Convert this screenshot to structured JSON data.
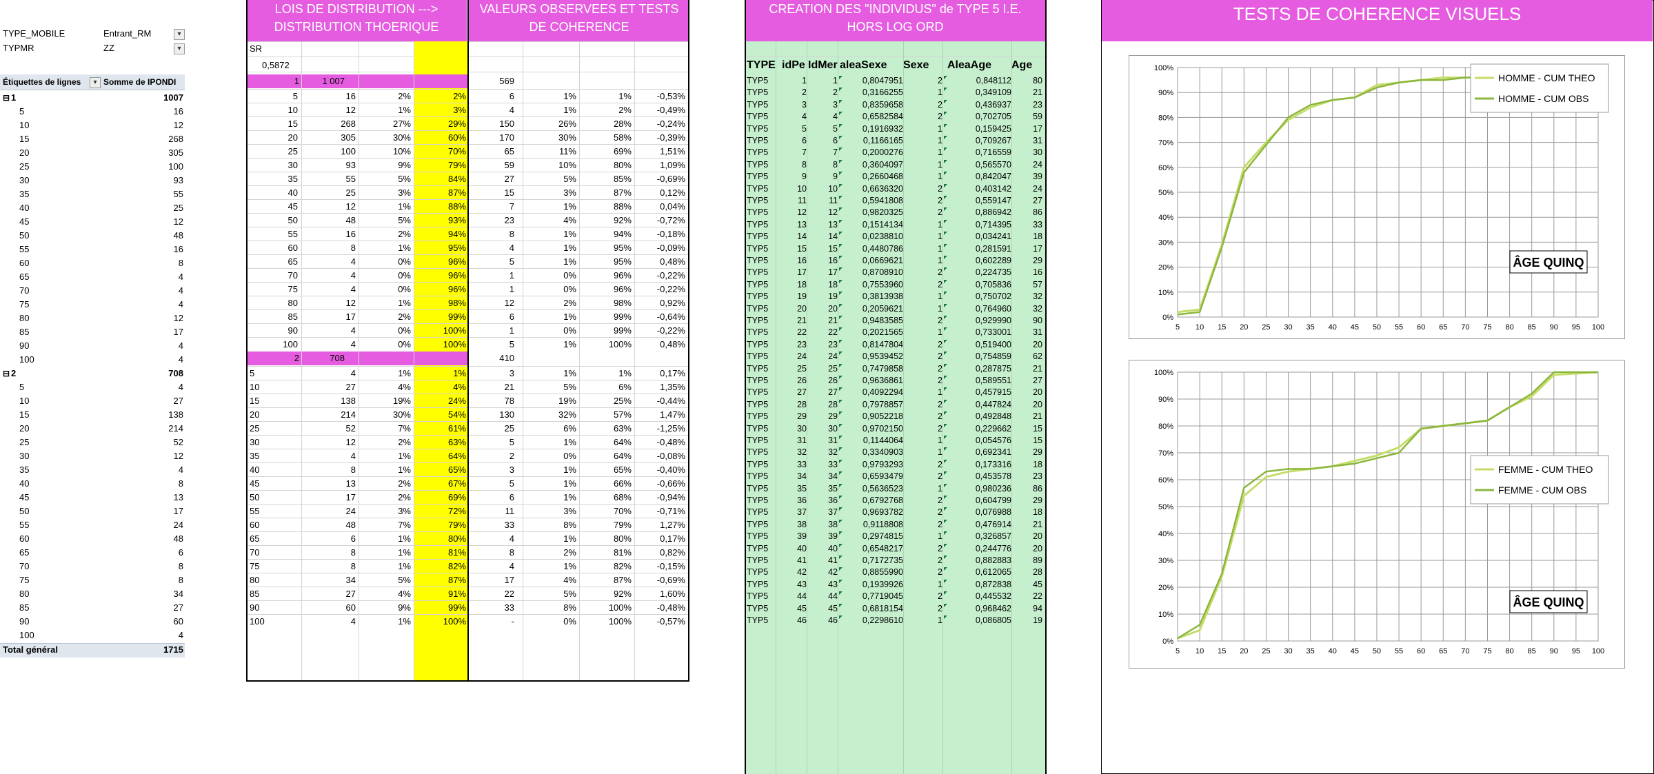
{
  "pivot": {
    "filters": [
      {
        "label": "TYPE_MOBILE",
        "value": "Entrant_RM"
      },
      {
        "label": "TYPMR",
        "value": "ZZ"
      }
    ],
    "header": {
      "labels": "Étiquettes de lignes",
      "sum": "Somme de IPONDI"
    },
    "groups": [
      {
        "label": "1",
        "total": "1007",
        "rows": [
          [
            "5",
            "16"
          ],
          [
            "10",
            "12"
          ],
          [
            "15",
            "268"
          ],
          [
            "20",
            "305"
          ],
          [
            "25",
            "100"
          ],
          [
            "30",
            "93"
          ],
          [
            "35",
            "55"
          ],
          [
            "40",
            "25"
          ],
          [
            "45",
            "12"
          ],
          [
            "50",
            "48"
          ],
          [
            "55",
            "16"
          ],
          [
            "60",
            "8"
          ],
          [
            "65",
            "4"
          ],
          [
            "70",
            "4"
          ],
          [
            "75",
            "4"
          ],
          [
            "80",
            "12"
          ],
          [
            "85",
            "17"
          ],
          [
            "90",
            "4"
          ],
          [
            "100",
            "4"
          ]
        ]
      },
      {
        "label": "2",
        "total": "708",
        "rows": [
          [
            "5",
            "4"
          ],
          [
            "10",
            "27"
          ],
          [
            "15",
            "138"
          ],
          [
            "20",
            "214"
          ],
          [
            "25",
            "52"
          ],
          [
            "30",
            "12"
          ],
          [
            "35",
            "4"
          ],
          [
            "40",
            "8"
          ],
          [
            "45",
            "13"
          ],
          [
            "50",
            "17"
          ],
          [
            "55",
            "24"
          ],
          [
            "60",
            "48"
          ],
          [
            "65",
            "6"
          ],
          [
            "70",
            "8"
          ],
          [
            "75",
            "8"
          ],
          [
            "80",
            "34"
          ],
          [
            "85",
            "27"
          ],
          [
            "90",
            "60"
          ],
          [
            "100",
            "4"
          ]
        ]
      }
    ],
    "grand_total": {
      "label": "Total général",
      "value": "1715"
    }
  },
  "lois": {
    "title": "LOIS DE DISTRIBUTION ---> DISTRIBUTION THOERIQUE",
    "sr_label": "SR",
    "sr_value": "0,5872",
    "g1": {
      "key": "1",
      "total": "1 007",
      "obs_total": "569"
    },
    "g2": {
      "key": "2",
      "total": "708",
      "obs_total": "410"
    },
    "rows1": [
      [
        "5",
        "16",
        "2%",
        "2%"
      ],
      [
        "10",
        "12",
        "1%",
        "3%"
      ],
      [
        "15",
        "268",
        "27%",
        "29%"
      ],
      [
        "20",
        "305",
        "30%",
        "60%"
      ],
      [
        "25",
        "100",
        "10%",
        "70%"
      ],
      [
        "30",
        "93",
        "9%",
        "79%"
      ],
      [
        "35",
        "55",
        "5%",
        "84%"
      ],
      [
        "40",
        "25",
        "3%",
        "87%"
      ],
      [
        "45",
        "12",
        "1%",
        "88%"
      ],
      [
        "50",
        "48",
        "5%",
        "93%"
      ],
      [
        "55",
        "16",
        "2%",
        "94%"
      ],
      [
        "60",
        "8",
        "1%",
        "95%"
      ],
      [
        "65",
        "4",
        "0%",
        "96%"
      ],
      [
        "70",
        "4",
        "0%",
        "96%"
      ],
      [
        "75",
        "4",
        "0%",
        "96%"
      ],
      [
        "80",
        "12",
        "1%",
        "98%"
      ],
      [
        "85",
        "17",
        "2%",
        "99%"
      ],
      [
        "90",
        "4",
        "0%",
        "100%"
      ],
      [
        "100",
        "4",
        "0%",
        "100%"
      ]
    ],
    "rows2": [
      [
        "5",
        "4",
        "1%",
        "1%"
      ],
      [
        "10",
        "27",
        "4%",
        "4%"
      ],
      [
        "15",
        "138",
        "19%",
        "24%"
      ],
      [
        "20",
        "214",
        "30%",
        "54%"
      ],
      [
        "25",
        "52",
        "7%",
        "61%"
      ],
      [
        "30",
        "12",
        "2%",
        "63%"
      ],
      [
        "35",
        "4",
        "1%",
        "64%"
      ],
      [
        "40",
        "8",
        "1%",
        "65%"
      ],
      [
        "45",
        "13",
        "2%",
        "67%"
      ],
      [
        "50",
        "17",
        "2%",
        "69%"
      ],
      [
        "55",
        "24",
        "3%",
        "72%"
      ],
      [
        "60",
        "48",
        "7%",
        "79%"
      ],
      [
        "65",
        "6",
        "1%",
        "80%"
      ],
      [
        "70",
        "8",
        "1%",
        "81%"
      ],
      [
        "75",
        "8",
        "1%",
        "82%"
      ],
      [
        "80",
        "34",
        "5%",
        "87%"
      ],
      [
        "85",
        "27",
        "4%",
        "91%"
      ],
      [
        "90",
        "60",
        "9%",
        "99%"
      ],
      [
        "100",
        "4",
        "1%",
        "100%"
      ]
    ]
  },
  "valeurs": {
    "title": "VALEURS OBSERVEES ET TESTS DE COHERENCE",
    "rows1": [
      [
        "6",
        "1%",
        "1%",
        "-0,53%"
      ],
      [
        "4",
        "1%",
        "2%",
        "-0,49%"
      ],
      [
        "150",
        "26%",
        "28%",
        "-0,24%"
      ],
      [
        "170",
        "30%",
        "58%",
        "-0,39%"
      ],
      [
        "65",
        "11%",
        "69%",
        "1,51%"
      ],
      [
        "59",
        "10%",
        "80%",
        "1,09%"
      ],
      [
        "27",
        "5%",
        "85%",
        "-0,69%"
      ],
      [
        "15",
        "3%",
        "87%",
        "0,12%"
      ],
      [
        "7",
        "1%",
        "88%",
        "0,04%"
      ],
      [
        "23",
        "4%",
        "92%",
        "-0,72%"
      ],
      [
        "8",
        "1%",
        "94%",
        "-0,18%"
      ],
      [
        "4",
        "1%",
        "95%",
        "-0,09%"
      ],
      [
        "5",
        "1%",
        "95%",
        "0,48%"
      ],
      [
        "1",
        "0%",
        "96%",
        "-0,22%"
      ],
      [
        "1",
        "0%",
        "96%",
        "-0,22%"
      ],
      [
        "12",
        "2%",
        "98%",
        "0,92%"
      ],
      [
        "6",
        "1%",
        "99%",
        "-0,64%"
      ],
      [
        "1",
        "0%",
        "99%",
        "-0,22%"
      ],
      [
        "5",
        "1%",
        "100%",
        "0,48%"
      ]
    ],
    "rows2": [
      [
        "3",
        "1%",
        "1%",
        "0,17%"
      ],
      [
        "21",
        "5%",
        "6%",
        "1,35%"
      ],
      [
        "78",
        "19%",
        "25%",
        "-0,44%"
      ],
      [
        "130",
        "32%",
        "57%",
        "1,47%"
      ],
      [
        "25",
        "6%",
        "63%",
        "-1,25%"
      ],
      [
        "5",
        "1%",
        "64%",
        "-0,48%"
      ],
      [
        "2",
        "0%",
        "64%",
        "-0,08%"
      ],
      [
        "3",
        "1%",
        "65%",
        "-0,40%"
      ],
      [
        "5",
        "1%",
        "66%",
        "-0,66%"
      ],
      [
        "6",
        "1%",
        "68%",
        "-0,94%"
      ],
      [
        "11",
        "3%",
        "70%",
        "-0,71%"
      ],
      [
        "33",
        "8%",
        "79%",
        "1,27%"
      ],
      [
        "4",
        "1%",
        "80%",
        "0,17%"
      ],
      [
        "8",
        "2%",
        "81%",
        "0,82%"
      ],
      [
        "4",
        "1%",
        "82%",
        "-0,15%"
      ],
      [
        "17",
        "4%",
        "87%",
        "-0,69%"
      ],
      [
        "22",
        "5%",
        "92%",
        "1,60%"
      ],
      [
        "33",
        "8%",
        "100%",
        "-0,48%"
      ],
      [
        "-",
        "0%",
        "100%",
        "-0,57%"
      ]
    ]
  },
  "individus": {
    "title": "CREATION DES \"INDIVIDUS\" de TYPE 5 I.E. HORS LOG ORD",
    "headers": [
      "TYPE",
      "idPe",
      "IdMer",
      "aleaSexe",
      "Sexe",
      "AleaAge",
      "Age"
    ],
    "rows": [
      [
        "TYP5",
        "1",
        "1",
        "0,8047951",
        "2",
        "0,848112",
        "80"
      ],
      [
        "TYP5",
        "2",
        "2",
        "0,3166255",
        "1",
        "0,349109",
        "21"
      ],
      [
        "TYP5",
        "3",
        "3",
        "0,8359658",
        "2",
        "0,436937",
        "23"
      ],
      [
        "TYP5",
        "4",
        "4",
        "0,6582584",
        "2",
        "0,702705",
        "59"
      ],
      [
        "TYP5",
        "5",
        "5",
        "0,1916932",
        "1",
        "0,159425",
        "17"
      ],
      [
        "TYP5",
        "6",
        "6",
        "0,1166165",
        "1",
        "0,709267",
        "31"
      ],
      [
        "TYP5",
        "7",
        "7",
        "0,2000276",
        "1",
        "0,716559",
        "30"
      ],
      [
        "TYP5",
        "8",
        "8",
        "0,3604097",
        "1",
        "0,565570",
        "24"
      ],
      [
        "TYP5",
        "9",
        "9",
        "0,2660468",
        "1",
        "0,842047",
        "39"
      ],
      [
        "TYP5",
        "10",
        "10",
        "0,6636320",
        "2",
        "0,403142",
        "24"
      ],
      [
        "TYP5",
        "11",
        "11",
        "0,5941808",
        "2",
        "0,559147",
        "27"
      ],
      [
        "TYP5",
        "12",
        "12",
        "0,9820325",
        "2",
        "0,886942",
        "86"
      ],
      [
        "TYP5",
        "13",
        "13",
        "0,1514134",
        "1",
        "0,714395",
        "33"
      ],
      [
        "TYP5",
        "14",
        "14",
        "0,0238810",
        "1",
        "0,034241",
        "18"
      ],
      [
        "TYP5",
        "15",
        "15",
        "0,4480786",
        "1",
        "0,281591",
        "17"
      ],
      [
        "TYP5",
        "16",
        "16",
        "0,0669621",
        "1",
        "0,602289",
        "29"
      ],
      [
        "TYP5",
        "17",
        "17",
        "0,8708910",
        "2",
        "0,224735",
        "16"
      ],
      [
        "TYP5",
        "18",
        "18",
        "0,7553960",
        "2",
        "0,705836",
        "57"
      ],
      [
        "TYP5",
        "19",
        "19",
        "0,3813938",
        "1",
        "0,750702",
        "32"
      ],
      [
        "TYP5",
        "20",
        "20",
        "0,2059621",
        "1",
        "0,764960",
        "32"
      ],
      [
        "TYP5",
        "21",
        "21",
        "0,9483585",
        "2",
        "0,929990",
        "90"
      ],
      [
        "TYP5",
        "22",
        "22",
        "0,2021565",
        "1",
        "0,733001",
        "31"
      ],
      [
        "TYP5",
        "23",
        "23",
        "0,8147804",
        "2",
        "0,519400",
        "20"
      ],
      [
        "TYP5",
        "24",
        "24",
        "0,9539452",
        "2",
        "0,754859",
        "62"
      ],
      [
        "TYP5",
        "25",
        "25",
        "0,7479858",
        "2",
        "0,287875",
        "21"
      ],
      [
        "TYP5",
        "26",
        "26",
        "0,9636861",
        "2",
        "0,589551",
        "27"
      ],
      [
        "TYP5",
        "27",
        "27",
        "0,4092294",
        "1",
        "0,457915",
        "20"
      ],
      [
        "TYP5",
        "28",
        "28",
        "0,7978857",
        "2",
        "0,447824",
        "20"
      ],
      [
        "TYP5",
        "29",
        "29",
        "0,9052218",
        "2",
        "0,492848",
        "21"
      ],
      [
        "TYP5",
        "30",
        "30",
        "0,9702150",
        "2",
        "0,229662",
        "15"
      ],
      [
        "TYP5",
        "31",
        "31",
        "0,1144064",
        "1",
        "0,054576",
        "15"
      ],
      [
        "TYP5",
        "32",
        "32",
        "0,3340903",
        "1",
        "0,692341",
        "29"
      ],
      [
        "TYP5",
        "33",
        "33",
        "0,9793293",
        "2",
        "0,173316",
        "18"
      ],
      [
        "TYP5",
        "34",
        "34",
        "0,6593479",
        "2",
        "0,453578",
        "23"
      ],
      [
        "TYP5",
        "35",
        "35",
        "0,5636523",
        "1",
        "0,980236",
        "86"
      ],
      [
        "TYP5",
        "36",
        "36",
        "0,6792768",
        "2",
        "0,604799",
        "29"
      ],
      [
        "TYP5",
        "37",
        "37",
        "0,9693782",
        "2",
        "0,076988",
        "18"
      ],
      [
        "TYP5",
        "38",
        "38",
        "0,9118808",
        "2",
        "0,476914",
        "21"
      ],
      [
        "TYP5",
        "39",
        "39",
        "0,2974815",
        "1",
        "0,326857",
        "20"
      ],
      [
        "TYP5",
        "40",
        "40",
        "0,6548217",
        "2",
        "0,244776",
        "20"
      ],
      [
        "TYP5",
        "41",
        "41",
        "0,7172735",
        "2",
        "0,882883",
        "89"
      ],
      [
        "TYP5",
        "42",
        "42",
        "0,8855990",
        "2",
        "0,612065",
        "28"
      ],
      [
        "TYP5",
        "43",
        "43",
        "0,1939926",
        "1",
        "0,872838",
        "45"
      ],
      [
        "TYP5",
        "44",
        "44",
        "0,7719045",
        "2",
        "0,445532",
        "22"
      ],
      [
        "TYP5",
        "45",
        "45",
        "0,6818154",
        "2",
        "0,968462",
        "94"
      ],
      [
        "TYP5",
        "46",
        "46",
        "0,2298610",
        "1",
        "0,086805",
        "19"
      ]
    ]
  },
  "tests": {
    "title": "TESTS DE COHERENCE VISUELS"
  },
  "colors": {
    "theo": "#c4dd6a",
    "obs": "#8cb63c",
    "pink": "#e65ce0",
    "yellow": "#ffff00",
    "green": "#c6efce"
  },
  "chart_data": [
    {
      "type": "line",
      "x": [
        5,
        10,
        15,
        20,
        25,
        30,
        35,
        40,
        45,
        50,
        55,
        60,
        65,
        70,
        75,
        80,
        85,
        90,
        100
      ],
      "ylim": [
        0,
        100
      ],
      "yticks": [
        "0%",
        "10%",
        "20%",
        "30%",
        "40%",
        "50%",
        "60%",
        "70%",
        "80%",
        "90%",
        "100%"
      ],
      "xticks": [
        "5",
        "10",
        "15",
        "20",
        "25",
        "30",
        "35",
        "40",
        "45",
        "50",
        "55",
        "60",
        "65",
        "70",
        "75",
        "80",
        "85",
        "90",
        "95",
        "100"
      ],
      "annotation": "ÂGE QUINQ",
      "series": [
        {
          "name": "HOMME - CUM THEO",
          "values": [
            2,
            3,
            29,
            60,
            70,
            79,
            84,
            87,
            88,
            93,
            94,
            95,
            96,
            96,
            96,
            98,
            99,
            100,
            100
          ]
        },
        {
          "name": "HOMME - CUM OBS",
          "values": [
            1,
            2,
            28,
            58,
            69,
            80,
            85,
            87,
            88,
            92,
            94,
            95,
            95,
            96,
            96,
            98,
            99,
            99,
            100
          ]
        }
      ]
    },
    {
      "type": "line",
      "x": [
        5,
        10,
        15,
        20,
        25,
        30,
        35,
        40,
        45,
        50,
        55,
        60,
        65,
        70,
        75,
        80,
        85,
        90,
        100
      ],
      "ylim": [
        0,
        100
      ],
      "yticks": [
        "0%",
        "10%",
        "20%",
        "30%",
        "40%",
        "50%",
        "60%",
        "70%",
        "80%",
        "90%",
        "100%"
      ],
      "xticks": [
        "5",
        "10",
        "15",
        "20",
        "25",
        "30",
        "35",
        "40",
        "45",
        "50",
        "55",
        "60",
        "65",
        "70",
        "75",
        "80",
        "85",
        "90",
        "95",
        "100"
      ],
      "annotation": "ÂGE QUINQ",
      "series": [
        {
          "name": "FEMME - CUM THEO",
          "values": [
            1,
            4,
            24,
            54,
            61,
            63,
            64,
            65,
            67,
            69,
            72,
            79,
            80,
            81,
            82,
            87,
            91,
            99,
            100
          ]
        },
        {
          "name": "FEMME - CUM OBS",
          "values": [
            1,
            6,
            25,
            57,
            63,
            64,
            64,
            65,
            66,
            68,
            70,
            79,
            80,
            81,
            82,
            87,
            92,
            100,
            100
          ]
        }
      ]
    }
  ]
}
